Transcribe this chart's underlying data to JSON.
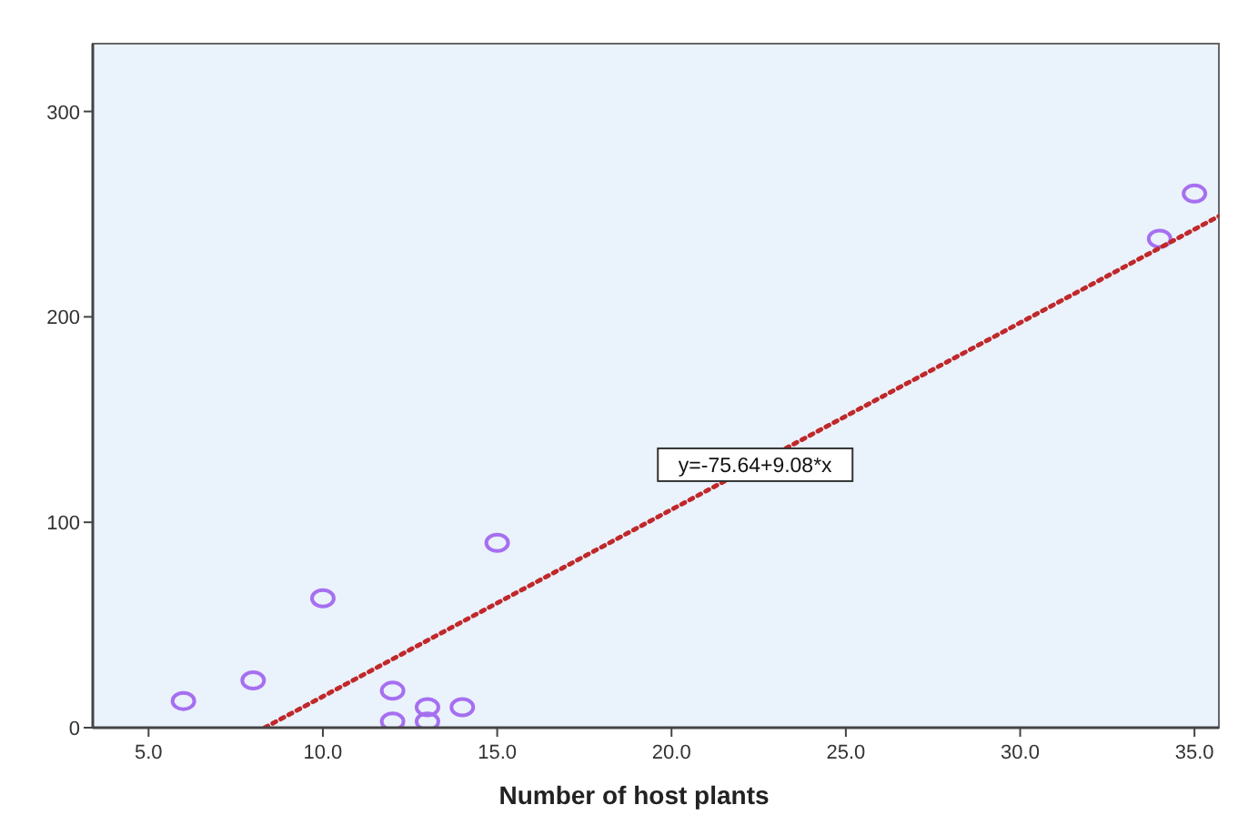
{
  "chart_data": {
    "type": "scatter",
    "xlabel": "Number of host plants",
    "xlim": [
      3.4,
      35.7
    ],
    "xticks": [
      {
        "value": 5,
        "label": "5.0"
      },
      {
        "value": 10,
        "label": "10.0"
      },
      {
        "value": 15,
        "label": "15.0"
      },
      {
        "value": 20,
        "label": "20.0"
      },
      {
        "value": 25,
        "label": "25.0"
      },
      {
        "value": 30,
        "label": "30.0"
      },
      {
        "value": 35,
        "label": "35.0"
      }
    ],
    "ylim": [
      0,
      333
    ],
    "yticks": [
      0,
      100,
      200,
      300
    ],
    "grid": false,
    "series": [
      {
        "color": "#a66ff0",
        "marker": "circle",
        "x": [
          6,
          8,
          10,
          12,
          12,
          13,
          13,
          14,
          15,
          34,
          35
        ],
        "values": [
          13,
          23,
          63,
          18,
          3,
          10,
          3,
          10,
          90,
          238,
          260
        ]
      },
      {
        "type": "line",
        "color": "#c0282a",
        "line_style": "dotted",
        "marker": "none",
        "x": [
          8.33,
          35.7
        ],
        "values": [
          0,
          249
        ]
      }
    ],
    "annotations": [
      {
        "text": "y=-75.64+9.08*x",
        "x": 22.4,
        "y": 128
      }
    ]
  }
}
